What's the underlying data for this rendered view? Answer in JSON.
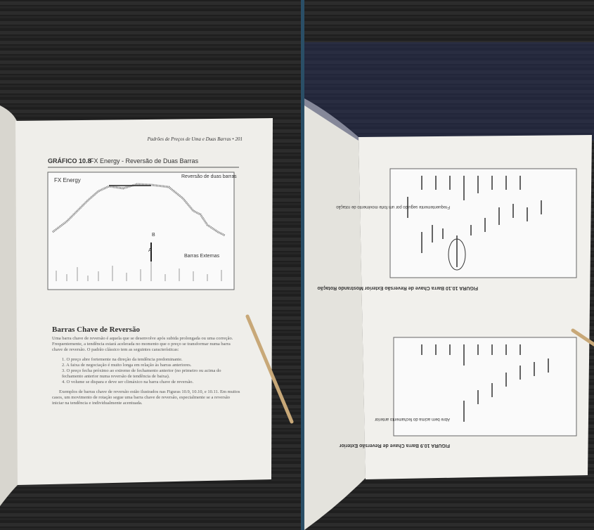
{
  "left_page": {
    "header": "Padrões de Preços de Uma e Duas Barras • 201",
    "figure_title": "GRÁFICO 10.8",
    "figure_caption": "FX Energy - Reversão de Duas Barras",
    "chart": {
      "name": "FX Energy",
      "annotation_top": "Reversão de duas barras",
      "annotation_right": "Barras Externas",
      "label_a": "A",
      "label_b": "B"
    },
    "section_title": "Barras Chave de Reversão",
    "paragraph": "Uma barra chave de reversão é aquela que se desenvolve após subida prolongada ou uma correção. Frequentemente, a tendência estará acelerada no momento que o preço se transformar numa barra chave de reversão. O padrão clássico tem as seguintes características:",
    "list": [
      "1. O preço abre fortemente na direção da tendência predominante.",
      "2. A faixa de negociação é muito longa em relação às barras anteriores.",
      "3. O preço fecha próximo ao extremo de fechamento anterior (no primeiro ou acima do fechamento anterior numa reversão de tendência de baixa).",
      "4. O volume se dispara e deve ser climáxico na barra chave de reversão."
    ],
    "closing": "Exemplos de barras chave de reversão estão ilustrados nas Figuras 10.9, 10.10, e 10.11. Em muitos casos, um movimento de rotação segue uma barra chave de reversão, especialmente se a reversão iniciar na tendência e individualmente acentuada."
  },
  "right_page": {
    "figure_top": "FIGURA 10.10 Barra Chave de Reversão Exterior Mostrando Rotação",
    "figure_bottom": "FIGURA 10.9 Barra Chave de Reversão Exterior",
    "note_top": "Frequentemente seguido por um forte movimento de rotação",
    "note_bottom": "Abre bem acima do fechamento anterior"
  }
}
